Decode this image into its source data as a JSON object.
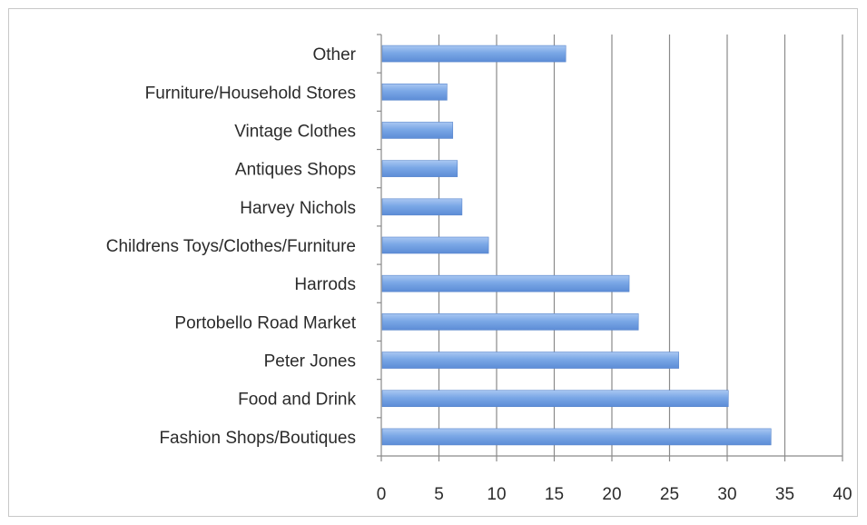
{
  "chart_data": {
    "type": "bar",
    "orientation": "horizontal",
    "categories": [
      "Fashion Shops/Boutiques",
      "Food and Drink",
      "Peter Jones",
      "Portobello Road Market",
      "Harrods",
      "Childrens Toys/Clothes/Furniture",
      "Harvey Nichols",
      "Antiques Shops",
      "Vintage Clothes",
      "Furniture/Household Stores",
      "Other"
    ],
    "values": [
      33.8,
      30.1,
      25.8,
      22.3,
      21.5,
      9.3,
      7.0,
      6.6,
      6.2,
      5.7,
      16.0
    ],
    "xlim": [
      0,
      40
    ],
    "x_ticks": [
      0,
      5,
      10,
      15,
      20,
      25,
      30,
      35,
      40
    ],
    "x_tick_labels": [
      "0",
      "5",
      "10",
      "15",
      "20",
      "25",
      "30",
      "35",
      "40"
    ],
    "grid": "vertical",
    "bar_color": "#6f9fe0",
    "title": "",
    "xlabel": "",
    "ylabel": ""
  }
}
